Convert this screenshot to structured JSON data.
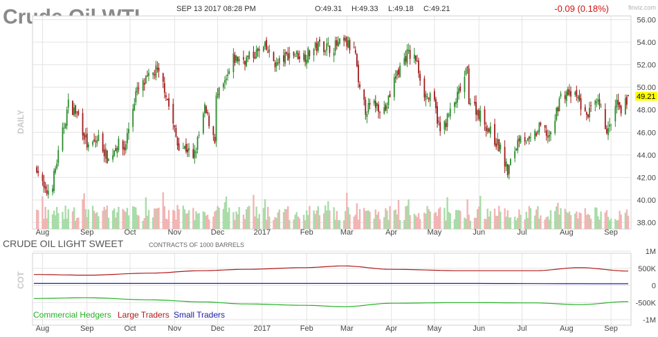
{
  "header": {
    "title": "Crude Oil WTI",
    "datetime": "SEP 13 2017 08:28 PM",
    "open": "O:49.31",
    "high": "H:49.33",
    "low": "L:49.18",
    "close": "C:49.21",
    "change": "-0.09 (0.18%)",
    "brand": "finviz.com",
    "last_price_label": "49.21"
  },
  "colors": {
    "up": "#2a8a2a",
    "down": "#a01818",
    "vol_up": "#a8dca8",
    "vol_down": "#f2b4b4",
    "grid": "#e3e3e3",
    "change": "#d01010",
    "highlight": "#ffff00",
    "commercial": "#22b022",
    "large": "#b01818",
    "small": "#1a1aa8"
  },
  "panels": {
    "price_axis_label": "DAILY",
    "cot_axis_label": "COT",
    "cot_title": "CRUDE OIL LIGHT SWEET",
    "cot_subtitle": "CONTRACTS OF 1000 BARRELS",
    "cot_legend": [
      "Commercial Hedgers",
      "Large Traders",
      "Small Traders"
    ]
  },
  "chart_data": [
    {
      "type": "candlestick",
      "y_ticks": [
        "56.00",
        "54.00",
        "52.00",
        "50.00",
        "48.00",
        "46.00",
        "44.00",
        "42.00",
        "40.00",
        "38.00"
      ],
      "ylim": [
        38,
        56
      ],
      "x_ticks": [
        "Aug",
        "Sep",
        "Oct",
        "Nov",
        "Dec",
        "2017",
        "Feb",
        "Mar",
        "Apr",
        "May",
        "Jun",
        "Jul",
        "Aug",
        "Sep"
      ],
      "grid": true,
      "close_anchors": [
        {
          "date": "2016-07-28",
          "close": 43.0
        },
        {
          "date": "2016-08-03",
          "close": 40.5
        },
        {
          "date": "2016-08-08",
          "close": 41.5
        },
        {
          "date": "2016-08-19",
          "close": 48.5
        },
        {
          "date": "2016-08-26",
          "close": 47.5
        },
        {
          "date": "2016-09-02",
          "close": 44.5
        },
        {
          "date": "2016-09-09",
          "close": 45.5
        },
        {
          "date": "2016-09-16",
          "close": 43.5
        },
        {
          "date": "2016-09-22",
          "close": 45.0
        },
        {
          "date": "2016-09-27",
          "close": 44.5
        },
        {
          "date": "2016-10-05",
          "close": 49.5
        },
        {
          "date": "2016-10-12",
          "close": 50.5
        },
        {
          "date": "2016-10-19",
          "close": 51.5
        },
        {
          "date": "2016-10-25",
          "close": 50.0
        },
        {
          "date": "2016-11-03",
          "close": 45.0
        },
        {
          "date": "2016-11-10",
          "close": 44.5
        },
        {
          "date": "2016-11-14",
          "close": 43.5
        },
        {
          "date": "2016-11-22",
          "close": 48.0
        },
        {
          "date": "2016-11-29",
          "close": 45.5
        },
        {
          "date": "2016-11-30",
          "close": 49.0
        },
        {
          "date": "2016-12-07",
          "close": 50.5
        },
        {
          "date": "2016-12-12",
          "close": 52.5
        },
        {
          "date": "2016-12-21",
          "close": 52.5
        },
        {
          "date": "2017-01-03",
          "close": 53.5
        },
        {
          "date": "2017-01-11",
          "close": 52.0
        },
        {
          "date": "2017-01-20",
          "close": 53.0
        },
        {
          "date": "2017-01-31",
          "close": 52.8
        },
        {
          "date": "2017-02-10",
          "close": 53.8
        },
        {
          "date": "2017-02-17",
          "close": 53.5
        },
        {
          "date": "2017-02-28",
          "close": 54.0
        },
        {
          "date": "2017-03-07",
          "close": 53.0
        },
        {
          "date": "2017-03-09",
          "close": 50.0
        },
        {
          "date": "2017-03-14",
          "close": 48.0
        },
        {
          "date": "2017-03-21",
          "close": 48.5
        },
        {
          "date": "2017-03-28",
          "close": 48.0
        },
        {
          "date": "2017-04-04",
          "close": 51.0
        },
        {
          "date": "2017-04-12",
          "close": 53.0
        },
        {
          "date": "2017-04-18",
          "close": 52.5
        },
        {
          "date": "2017-04-24",
          "close": 49.5
        },
        {
          "date": "2017-05-01",
          "close": 48.5
        },
        {
          "date": "2017-05-05",
          "close": 46.0
        },
        {
          "date": "2017-05-15",
          "close": 48.5
        },
        {
          "date": "2017-05-24",
          "close": 51.5
        },
        {
          "date": "2017-05-25",
          "close": 49.0
        },
        {
          "date": "2017-06-02",
          "close": 47.5
        },
        {
          "date": "2017-06-09",
          "close": 46.0
        },
        {
          "date": "2017-06-16",
          "close": 44.5
        },
        {
          "date": "2017-06-21",
          "close": 42.5
        },
        {
          "date": "2017-06-30",
          "close": 46.0
        },
        {
          "date": "2017-07-06",
          "close": 45.0
        },
        {
          "date": "2017-07-14",
          "close": 46.5
        },
        {
          "date": "2017-07-21",
          "close": 45.5
        },
        {
          "date": "2017-07-27",
          "close": 49.0
        },
        {
          "date": "2017-08-01",
          "close": 49.5
        },
        {
          "date": "2017-08-09",
          "close": 49.0
        },
        {
          "date": "2017-08-14",
          "close": 47.5
        },
        {
          "date": "2017-08-23",
          "close": 48.5
        },
        {
          "date": "2017-08-30",
          "close": 46.0
        },
        {
          "date": "2017-09-05",
          "close": 48.5
        },
        {
          "date": "2017-09-08",
          "close": 47.5
        },
        {
          "date": "2017-09-13",
          "close": 49.21
        }
      ]
    },
    {
      "type": "line",
      "y_ticks": [
        "1M",
        "500K",
        "0",
        "-500K",
        "-1M"
      ],
      "ylim": [
        -1000000,
        1000000
      ],
      "series": [
        {
          "name": "Commercial Hedgers",
          "values": [
            {
              "date": "2016-07-26",
              "value": -380000
            },
            {
              "date": "2016-09-01",
              "value": -360000
            },
            {
              "date": "2016-10-15",
              "value": -420000
            },
            {
              "date": "2016-11-20",
              "value": -480000
            },
            {
              "date": "2016-12-20",
              "value": -540000
            },
            {
              "date": "2017-01-31",
              "value": -580000
            },
            {
              "date": "2017-02-27",
              "value": -620000
            },
            {
              "date": "2017-04-01",
              "value": -520000
            },
            {
              "date": "2017-05-20",
              "value": -500000
            },
            {
              "date": "2017-07-10",
              "value": -510000
            },
            {
              "date": "2017-08-10",
              "value": -560000
            },
            {
              "date": "2017-09-13",
              "value": -470000
            }
          ]
        },
        {
          "name": "Large Traders",
          "values": [
            {
              "date": "2016-07-26",
              "value": 320000
            },
            {
              "date": "2016-09-01",
              "value": 300000
            },
            {
              "date": "2016-10-15",
              "value": 360000
            },
            {
              "date": "2016-11-20",
              "value": 430000
            },
            {
              "date": "2016-12-20",
              "value": 470000
            },
            {
              "date": "2017-01-31",
              "value": 520000
            },
            {
              "date": "2017-02-27",
              "value": 570000
            },
            {
              "date": "2017-04-01",
              "value": 470000
            },
            {
              "date": "2017-05-20",
              "value": 430000
            },
            {
              "date": "2017-07-10",
              "value": 430000
            },
            {
              "date": "2017-08-10",
              "value": 520000
            },
            {
              "date": "2017-09-13",
              "value": 420000
            }
          ]
        },
        {
          "name": "Small Traders",
          "values": [
            {
              "date": "2016-07-26",
              "value": 60000
            },
            {
              "date": "2016-10-15",
              "value": 60000
            },
            {
              "date": "2017-01-31",
              "value": 60000
            },
            {
              "date": "2017-05-20",
              "value": 60000
            },
            {
              "date": "2017-09-13",
              "value": 50000
            }
          ]
        }
      ],
      "x_ticks": [
        "Aug",
        "Sep",
        "Oct",
        "Nov",
        "Dec",
        "2017",
        "Feb",
        "Mar",
        "Apr",
        "May",
        "Jun",
        "Jul",
        "Aug",
        "Sep"
      ],
      "legend": "bottom-left"
    }
  ]
}
